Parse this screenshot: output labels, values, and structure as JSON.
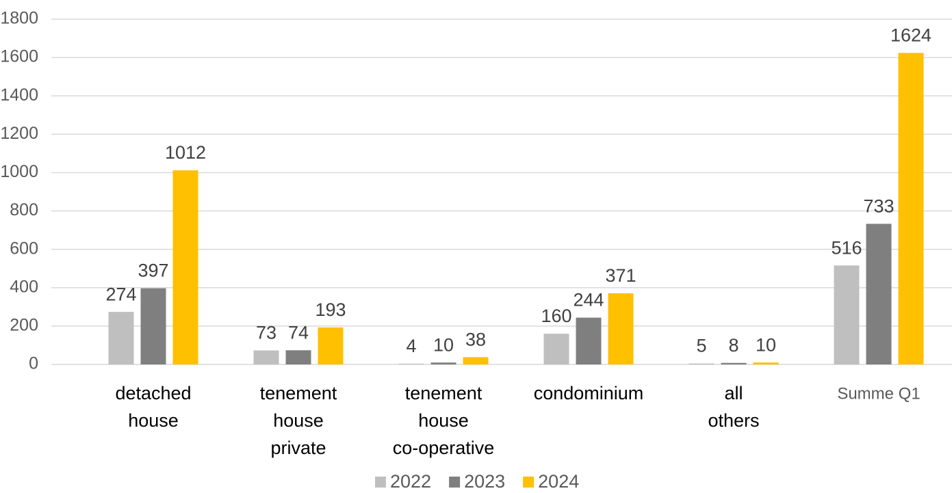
{
  "chart_data": {
    "type": "bar",
    "categories": [
      [
        "detached",
        "house"
      ],
      [
        "tenement",
        "house",
        "private"
      ],
      [
        "tenement",
        "house",
        "co-operative"
      ],
      [
        "condominium"
      ],
      [
        "all",
        "others"
      ],
      [
        "Summe Q1"
      ]
    ],
    "series": [
      {
        "name": "2022",
        "color": "#bfbfbf",
        "values": [
          274,
          73,
          4,
          160,
          5,
          516
        ]
      },
      {
        "name": "2023",
        "color": "#7f7f7f",
        "values": [
          397,
          74,
          10,
          244,
          8,
          733
        ]
      },
      {
        "name": "2024",
        "color": "#ffc000",
        "values": [
          1012,
          193,
          38,
          371,
          10,
          1624
        ]
      }
    ],
    "ylim": [
      0,
      1800
    ],
    "yticks": [
      0,
      200,
      400,
      600,
      800,
      1000,
      1200,
      1400,
      1600,
      1800
    ],
    "grid": true,
    "legend": "bottom"
  }
}
